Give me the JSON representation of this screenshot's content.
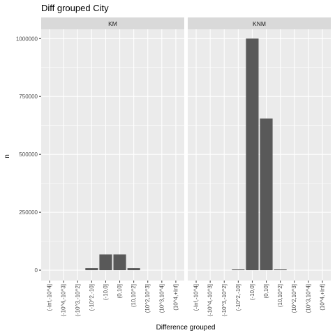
{
  "chart_data": {
    "type": "bar",
    "title": "Diff grouped City",
    "xlabel": "Difference grouped",
    "ylabel": "n",
    "ylim": [
      -45000,
      1040000
    ],
    "yticks": [
      0,
      250000,
      500000,
      750000,
      1000000
    ],
    "ytick_labels": [
      "0",
      "250000",
      "500000",
      "750000",
      "1000000"
    ],
    "categories": [
      "(-Inf,-10^4]",
      "(-10^4,-10^3]",
      "(-10^3,-10^2]",
      "(-10^2,-10]",
      "(-10,0]",
      "(0,10]",
      "(10,10^2]",
      "(10^2,10^3]",
      "(10^3,10^4]",
      "(10^4,+Inf]"
    ],
    "facets": [
      {
        "name": "KM",
        "values": [
          0,
          0,
          0,
          9000,
          68000,
          68000,
          9000,
          0,
          0,
          0
        ]
      },
      {
        "name": "KNM",
        "values": [
          0,
          0,
          0,
          3000,
          1000000,
          655000,
          3000,
          0,
          0,
          0
        ]
      }
    ],
    "grid": true,
    "colors": {
      "bar": "#595959",
      "panel": "#ebebeb",
      "strip": "#d9d9d9",
      "grid": "#ffffff"
    }
  }
}
